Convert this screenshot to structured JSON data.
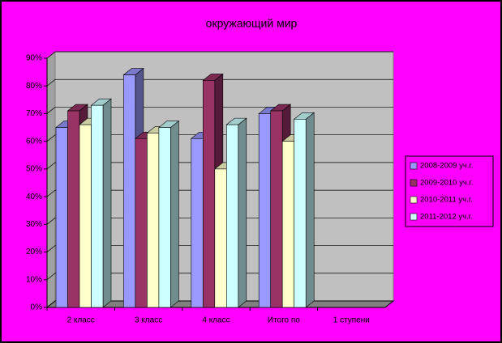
{
  "chart_data": {
    "type": "bar3d",
    "title": "окружающий мир",
    "categories": [
      "2 класс",
      "3 класс",
      "4 класс",
      "Итого по",
      "1 ступени"
    ],
    "series": [
      {
        "name": "2008-2009 уч.г.",
        "color": "#9999ff",
        "values": [
          65,
          84,
          61,
          70,
          null
        ]
      },
      {
        "name": "2009-2010 уч.г.",
        "color": "#993366",
        "values": [
          71,
          61,
          82,
          71,
          null
        ]
      },
      {
        "name": "2010-2011 уч.г.",
        "color": "#ffffcc",
        "values": [
          66,
          63,
          50,
          60,
          null
        ]
      },
      {
        "name": "2011-2012 уч.г.",
        "color": "#ccffff",
        "values": [
          73,
          65,
          66,
          68,
          null
        ]
      }
    ],
    "ylim": [
      0,
      90
    ],
    "yticks": [
      {
        "value": 0,
        "label": "0%"
      },
      {
        "value": 10,
        "label": "10%"
      },
      {
        "value": 20,
        "label": "20%"
      },
      {
        "value": 30,
        "label": "30%"
      },
      {
        "value": 40,
        "label": "40%"
      },
      {
        "value": 50,
        "label": "50%"
      },
      {
        "value": 60,
        "label": "60%"
      },
      {
        "value": 70,
        "label": "70%"
      },
      {
        "value": 80,
        "label": "80%"
      },
      {
        "value": 90,
        "label": "90%"
      }
    ],
    "grid": true,
    "legend": "right"
  }
}
